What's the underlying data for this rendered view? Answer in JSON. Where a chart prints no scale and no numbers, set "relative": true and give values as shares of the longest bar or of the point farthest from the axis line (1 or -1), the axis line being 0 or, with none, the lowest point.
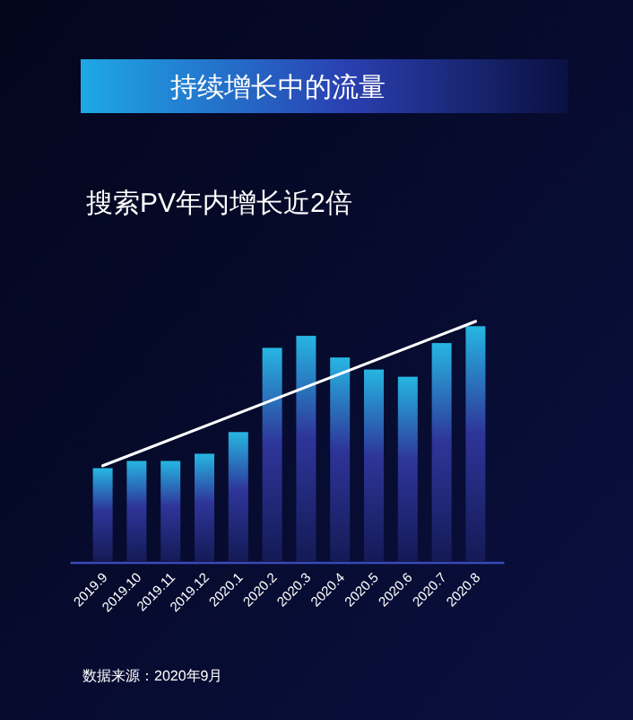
{
  "chart_data": {
    "type": "bar",
    "title": "持续增长中的流量",
    "subtitle": "搜索PV年内增长近2倍",
    "annotations": [
      "数据来源：2020年9月"
    ],
    "relative": true,
    "categories": [
      "2019.9",
      "2019.10",
      "2019.11",
      "2019.12",
      "2020.1",
      "2020.2",
      "2020.3",
      "2020.4",
      "2020.5",
      "2020.6",
      "2020.7",
      "2020.8"
    ],
    "series": [
      {
        "color": "#2e3599",
        "values": [
          0.39,
          0.42,
          0.42,
          0.45,
          0.54,
          0.89,
          0.94,
          0.85,
          0.8,
          0.77,
          0.91,
          0.98
        ]
      },
      {
        "type": "line",
        "color": "#ffffff",
        "x": [
          "2019.9",
          "2020.8"
        ],
        "values": [
          0.4,
          1.0
        ]
      }
    ]
  }
}
